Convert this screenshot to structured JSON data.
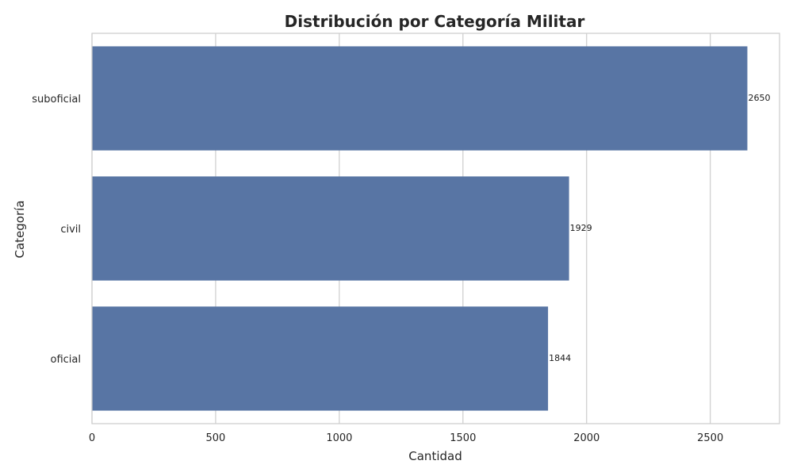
{
  "chart_data": {
    "type": "bar",
    "orientation": "horizontal",
    "title": "Distribución por Categoría Militar",
    "xlabel": "Cantidad",
    "ylabel": "Categoría",
    "categories": [
      "suboficial",
      "civil",
      "oficial"
    ],
    "values": [
      2650,
      1929,
      1844
    ],
    "xlim": [
      0,
      2780
    ],
    "xticks": [
      0,
      500,
      1000,
      1500,
      2000,
      2500
    ],
    "grid": true,
    "bar_color": "#5875a4"
  }
}
